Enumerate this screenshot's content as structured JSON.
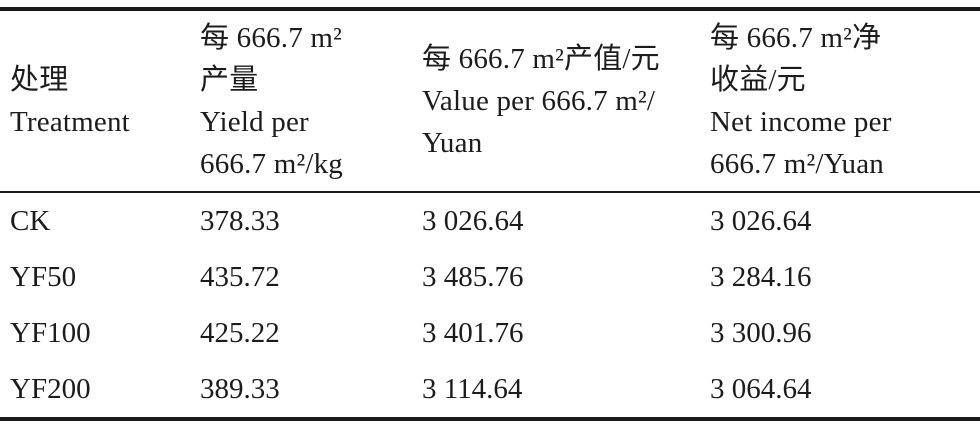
{
  "page": {
    "background_color": "#ffffff",
    "text_color": "#1c1c1c",
    "rule_color": "#1a1a1a"
  },
  "table": {
    "columns": [
      {
        "id": "treatment",
        "header": "处理\nTreatment"
      },
      {
        "id": "yield",
        "header": "每 666.7 m²\n产量\nYield per\n666.7 m²/kg"
      },
      {
        "id": "value",
        "header": "每 666.7 m²产值/元\nValue per 666.7 m²/\nYuan"
      },
      {
        "id": "net_income",
        "header": "每 666.7 m²净\n收益/元\nNet income per\n666.7 m²/Yuan"
      }
    ],
    "rows": [
      [
        "CK",
        "378.33",
        "3 026.64",
        "3 026.64"
      ],
      [
        "YF50",
        "435.72",
        "3 485.76",
        "3 284.16"
      ],
      [
        "YF100",
        "425.22",
        "3 401.76",
        "3 300.96"
      ],
      [
        "YF200",
        "389.33",
        "3 114.64",
        "3 064.64"
      ]
    ]
  },
  "chart_data": {
    "type": "table",
    "categories": [
      "CK",
      "YF50",
      "YF100",
      "YF200"
    ],
    "series": [
      {
        "name": "Yield per 666.7 m²/kg",
        "values": [
          378.33,
          435.72,
          425.22,
          389.33
        ]
      },
      {
        "name": "Value per 666.7 m²/Yuan",
        "values": [
          3026.64,
          3485.76,
          3401.76,
          3114.64
        ]
      },
      {
        "name": "Net income per 666.7 m²/Yuan",
        "values": [
          3026.64,
          3284.16,
          3300.96,
          3064.64
        ]
      }
    ]
  }
}
